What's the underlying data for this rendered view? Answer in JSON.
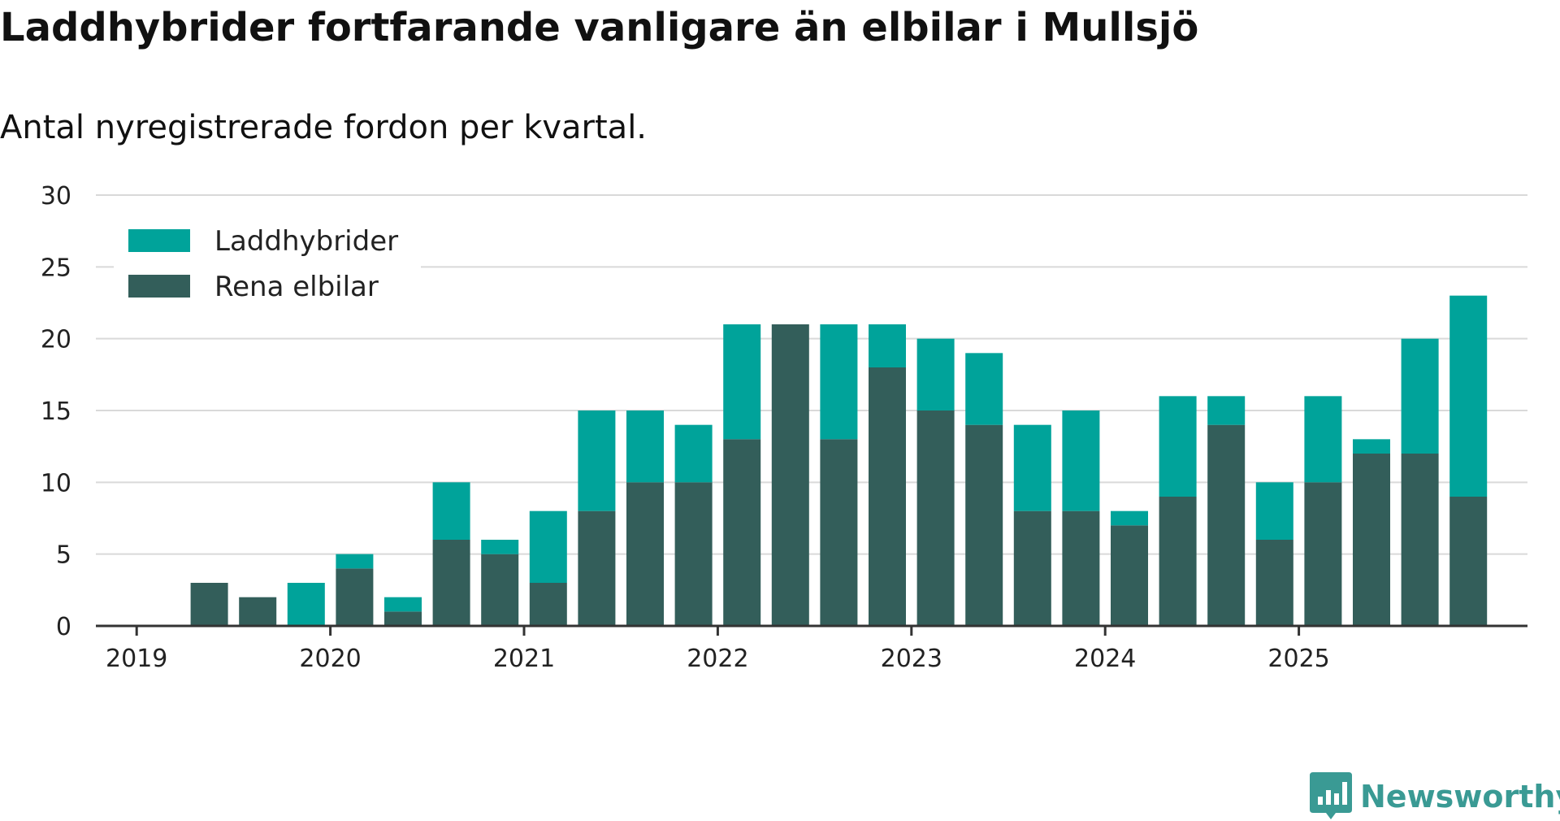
{
  "title": "Laddhybrider fortfarande vanligare än elbilar i Mullsjö",
  "subtitle": "Antal nyregistrerade fordon per kvartal.",
  "brand": {
    "name": "Newsworthy",
    "icon": "newsworthy-logo-icon"
  },
  "colors": {
    "laddhybrider": "#00A39A",
    "elbilar": "#335E5A",
    "grid": "#d9d9d9",
    "axis": "#333333"
  },
  "chart_data": {
    "type": "bar",
    "stacked": true,
    "title": "Laddhybrider fortfarande vanligare än elbilar i Mullsjö",
    "subtitle": "Antal nyregistrerade fordon per kvartal.",
    "categories": [
      "2019 Q1",
      "2019 Q2",
      "2019 Q3",
      "2019 Q4",
      "2020 Q1",
      "2020 Q2",
      "2020 Q3",
      "2020 Q4",
      "2021 Q1",
      "2021 Q2",
      "2021 Q3",
      "2021 Q4",
      "2022 Q1",
      "2022 Q2",
      "2022 Q3",
      "2022 Q4",
      "2023 Q1",
      "2023 Q2",
      "2023 Q3",
      "2023 Q4",
      "2024 Q1",
      "2024 Q2",
      "2024 Q3",
      "2024 Q4",
      "2025 Q1",
      "2025 Q2",
      "2025 Q3",
      "2025 Q4"
    ],
    "series": [
      {
        "name": "Rena elbilar",
        "values": [
          0,
          3,
          2,
          0,
          4,
          1,
          6,
          5,
          3,
          8,
          10,
          10,
          13,
          21,
          13,
          18,
          15,
          14,
          8,
          8,
          7,
          9,
          14,
          6,
          10,
          12,
          12,
          9
        ]
      },
      {
        "name": "Laddhybrider",
        "values": [
          0,
          0,
          0,
          3,
          1,
          1,
          4,
          1,
          5,
          7,
          5,
          4,
          8,
          0,
          8,
          3,
          5,
          5,
          6,
          7,
          1,
          7,
          2,
          4,
          6,
          1,
          8,
          14
        ]
      }
    ],
    "legend": [
      "Laddhybrider",
      "Rena elbilar"
    ],
    "legend_position": "top-left",
    "x_ticks": [
      "2019",
      "2020",
      "2021",
      "2022",
      "2023",
      "2024",
      "2025"
    ],
    "y_ticks": [
      0,
      5,
      10,
      15,
      20,
      25,
      30
    ],
    "ylim": [
      0,
      30
    ],
    "grid": true,
    "xlabel": "",
    "ylabel": ""
  }
}
